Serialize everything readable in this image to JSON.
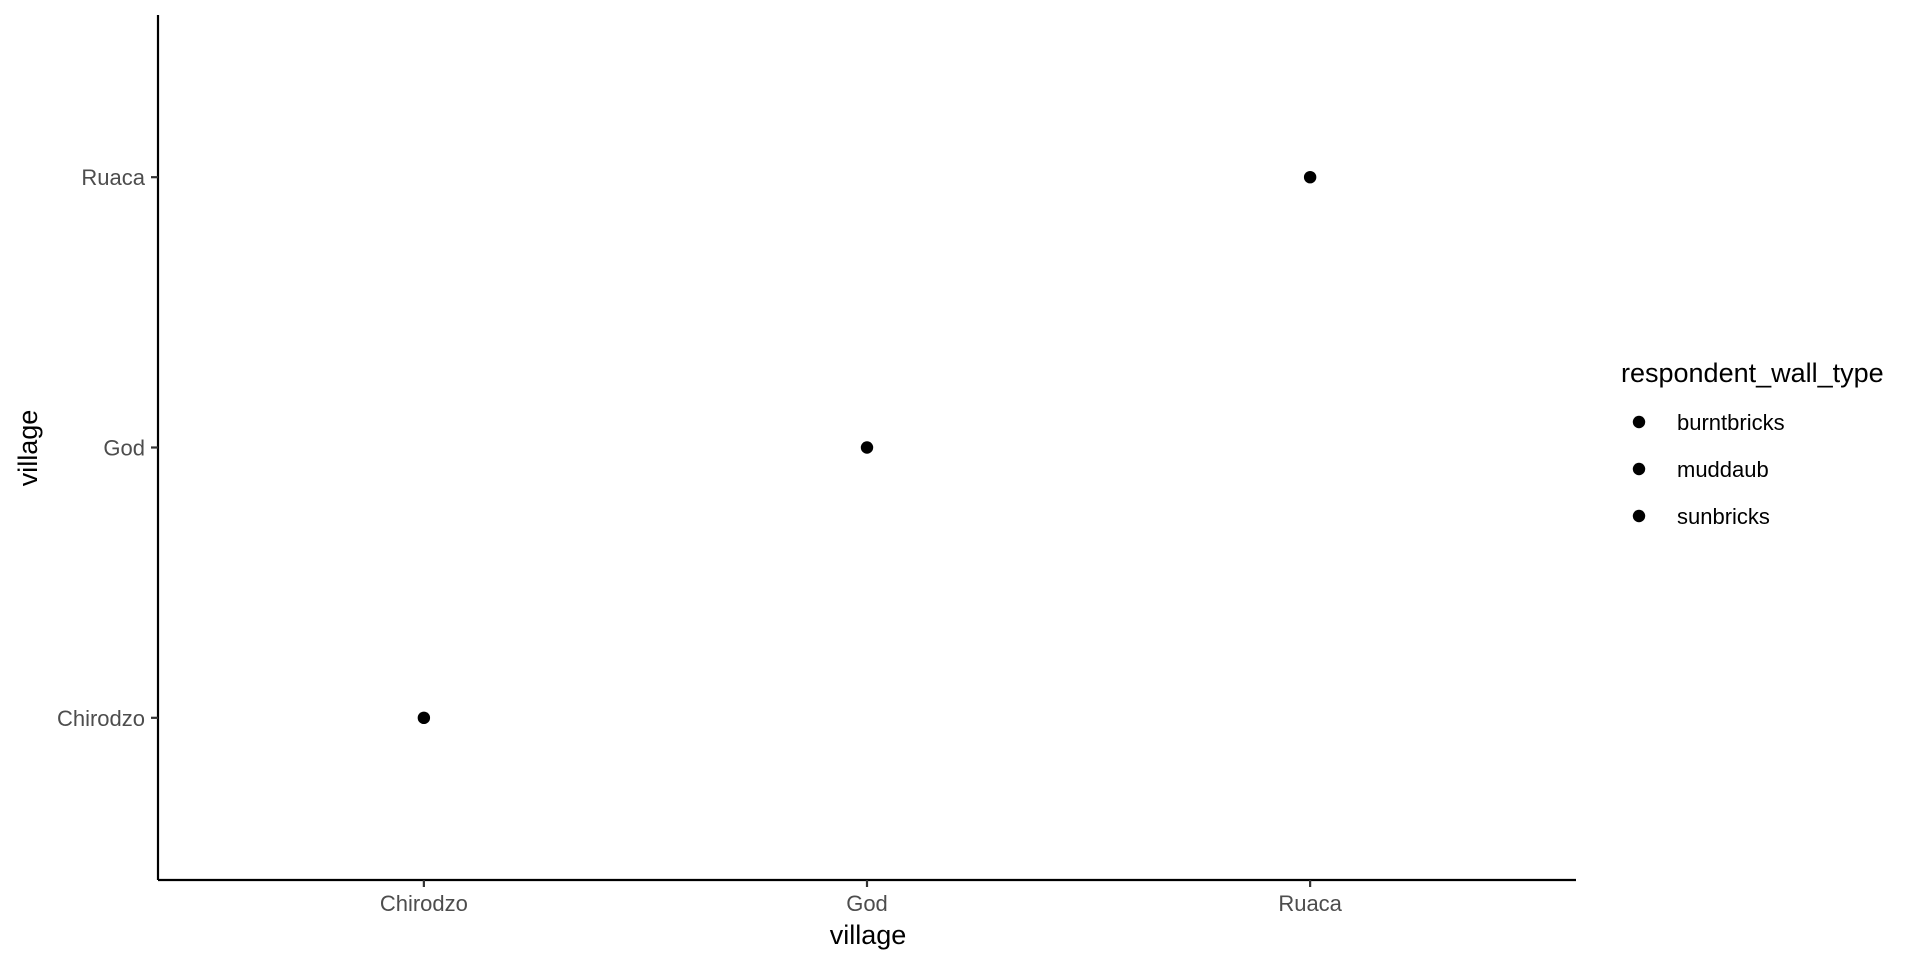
{
  "chart_data": {
    "type": "scatter",
    "xlabel": "village",
    "ylabel": "village",
    "x_categories": [
      "Chirodzo",
      "God",
      "Ruaca"
    ],
    "y_categories": [
      "Chirodzo",
      "God",
      "Ruaca"
    ],
    "points": [
      {
        "x": "Chirodzo",
        "y": "Chirodzo"
      },
      {
        "x": "God",
        "y": "God"
      },
      {
        "x": "Ruaca",
        "y": "Ruaca"
      }
    ],
    "point_color": "#000000",
    "grid": false,
    "legend": {
      "title": "respondent_wall_type",
      "placement": "right",
      "entries": [
        "burntbricks",
        "muddaub",
        "sunbricks"
      ],
      "marker_color": "#000000"
    }
  }
}
